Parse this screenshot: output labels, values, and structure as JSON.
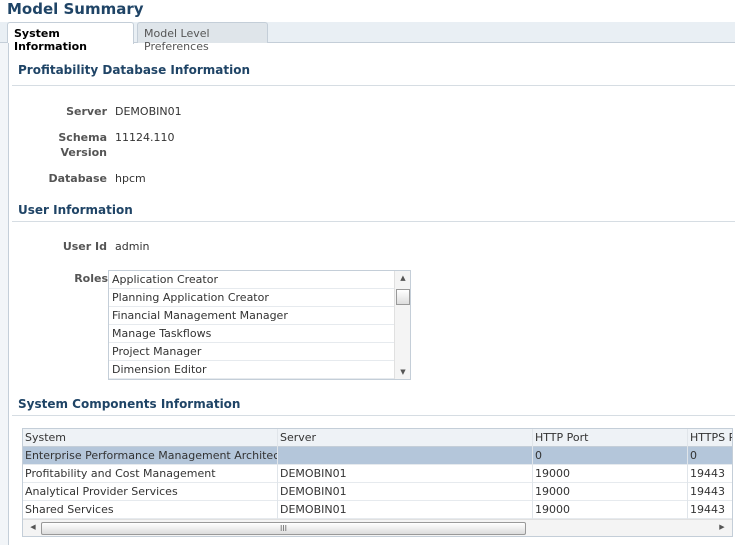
{
  "header": {
    "title": "Model Summary"
  },
  "tabs": [
    {
      "label": "System Information",
      "active": true
    },
    {
      "label": "Model Level Preferences",
      "active": false
    }
  ],
  "profitability": {
    "heading": "Profitability Database Information",
    "server_label": "Server",
    "server": "DEMOBIN01",
    "schema_label": "Schema Version",
    "schema": "11124.110",
    "database_label": "Database",
    "database": "hpcm"
  },
  "user": {
    "heading": "User Information",
    "userid_label": "User Id",
    "userid": "admin",
    "roles_label": "Roles",
    "roles": [
      "Application Creator",
      "Planning Application Creator",
      "Financial Management Manager",
      "Manage Taskflows",
      "Project Manager",
      "Dimension Editor"
    ]
  },
  "components": {
    "heading": "System Components Information",
    "columns": [
      "System",
      "Server",
      "HTTP Port",
      "HTTPS Port"
    ],
    "rows": [
      [
        "Enterprise Performance Management Architect",
        "",
        "0",
        "0"
      ],
      [
        "Profitability and Cost Management",
        "DEMOBIN01",
        "19000",
        "19443"
      ],
      [
        "Analytical Provider Services",
        "DEMOBIN01",
        "19000",
        "19443"
      ],
      [
        "Shared Services",
        "DEMOBIN01",
        "19000",
        "19443"
      ]
    ],
    "selected_row": 0
  },
  "scroll": {
    "thumb_grip": "III"
  },
  "colors": {
    "title": "#1f4466",
    "selected_row": "#b4c6da"
  }
}
